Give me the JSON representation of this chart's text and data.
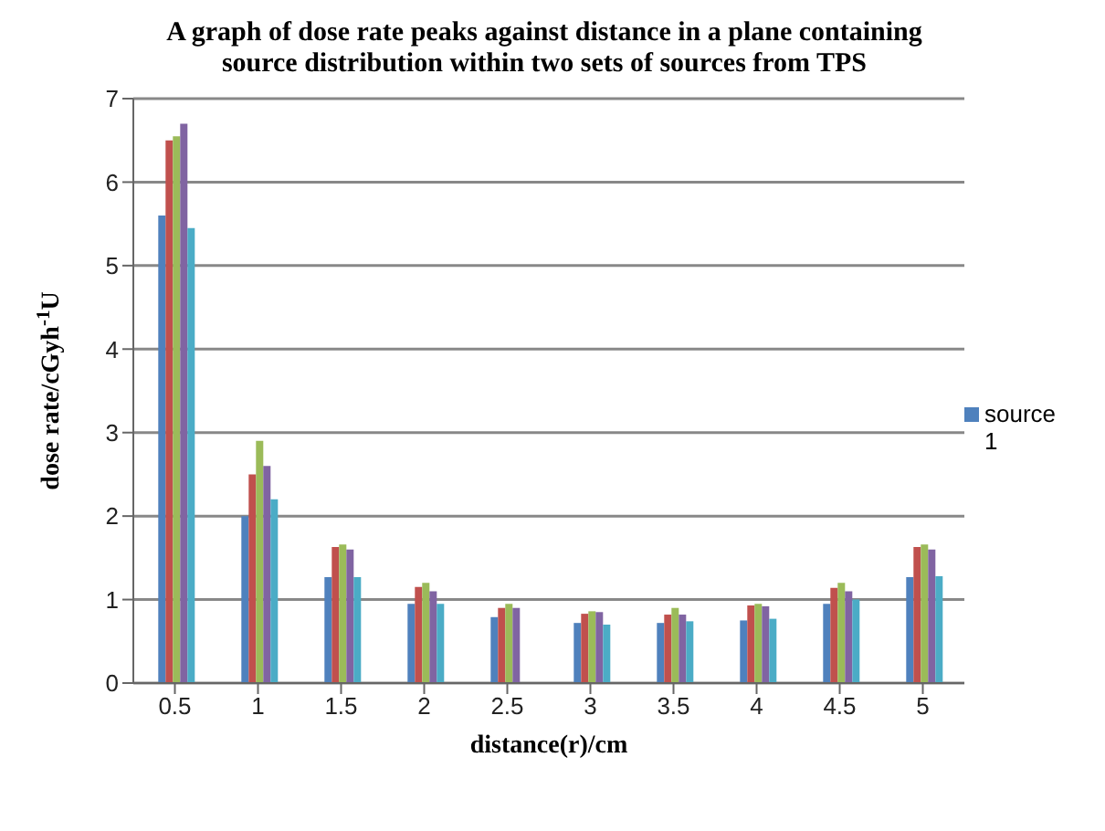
{
  "chart_data": {
    "type": "bar",
    "title": "A graph of dose rate peaks against distance in a plane containing source distribution within two sets of sources from TPS",
    "xlabel": "distance(r)/cm",
    "ylabel": "dose rate/cGyh$^{-1}$U",
    "categories": [
      "0.5",
      "1",
      "1.5",
      "2",
      "2.5",
      "3",
      "3.5",
      "4",
      "4.5",
      "5"
    ],
    "series": [
      {
        "name": "source 1",
        "color": "#4f81bd",
        "values": [
          5.6,
          2.0,
          1.27,
          0.95,
          0.79,
          0.72,
          0.72,
          0.75,
          0.95,
          1.27
        ]
      },
      {
        "color": "#c0504d",
        "values": [
          6.5,
          2.5,
          1.63,
          1.15,
          0.9,
          0.83,
          0.82,
          0.93,
          1.14,
          1.63
        ]
      },
      {
        "color": "#9bbb59",
        "values": [
          6.55,
          2.9,
          1.66,
          1.2,
          0.95,
          0.86,
          0.9,
          0.95,
          1.2,
          1.66
        ]
      },
      {
        "color": "#8064a2",
        "values": [
          6.7,
          2.6,
          1.6,
          1.1,
          0.9,
          0.85,
          0.82,
          0.92,
          1.1,
          1.6
        ]
      },
      {
        "color": "#4bacc6",
        "values": [
          5.45,
          2.2,
          1.27,
          0.95,
          0,
          0.7,
          0.74,
          0.77,
          1.0,
          1.28
        ]
      }
    ],
    "ylim": [
      0,
      7
    ],
    "yticks": [
      0,
      1,
      2,
      3,
      4,
      5,
      6,
      7
    ],
    "grid": "y",
    "legend": "right"
  }
}
